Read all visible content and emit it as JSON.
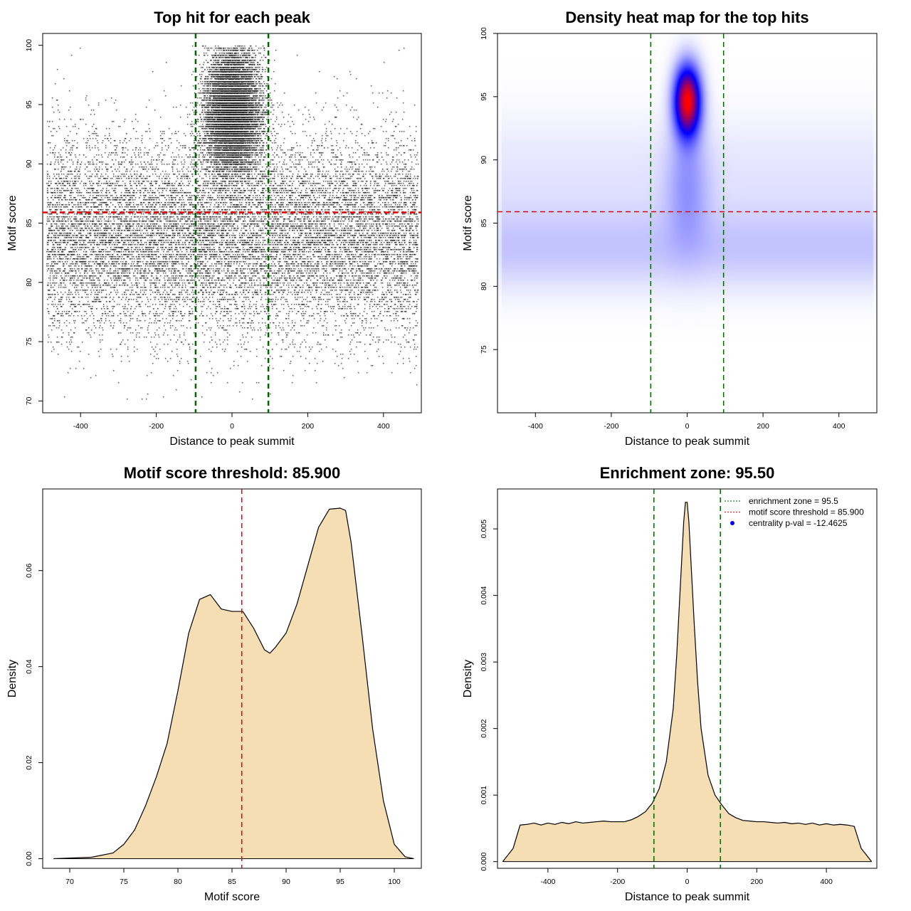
{
  "chart_data": [
    {
      "type": "scatter",
      "title": "Top hit for each peak",
      "xlabel": "Distance to peak summit",
      "ylabel": "Motif score",
      "xlim": [
        -500,
        500
      ],
      "ylim": [
        69,
        101
      ],
      "xticks": [
        -400,
        -200,
        0,
        200,
        400
      ],
      "yticks": [
        70,
        75,
        80,
        85,
        90,
        95,
        100
      ],
      "background_distribution": {
        "x_range": [
          -490,
          490
        ],
        "score_mode": 84,
        "score_range": [
          70,
          100
        ]
      },
      "central_enrichment": {
        "x_center": 0,
        "x_sd": 35,
        "score_mode": 94.5,
        "score_range": [
          86,
          100
        ]
      },
      "vlines": [
        {
          "x": -96,
          "color": "#006400",
          "style": "dashed"
        },
        {
          "x": 96,
          "color": "#006400",
          "style": "dashed"
        }
      ],
      "hlines": [
        {
          "y": 85.9,
          "color": "#e00000",
          "style": "dashed"
        }
      ]
    },
    {
      "type": "heatmap",
      "title": "Density heat map for the top hits",
      "xlabel": "Distance to peak summit",
      "ylabel": "Motif score",
      "xlim": [
        -500,
        500
      ],
      "ylim": [
        70,
        100
      ],
      "xticks": [
        -400,
        -200,
        0,
        200,
        400
      ],
      "yticks": [
        75,
        80,
        85,
        90,
        95,
        100
      ],
      "hotspot": {
        "x": 0,
        "y": 94.7
      },
      "colors": [
        "#ffffff",
        "#0000ff",
        "#ff0000"
      ],
      "vlines": [
        {
          "x": -96,
          "color": "#006400",
          "style": "dashed"
        },
        {
          "x": 96,
          "color": "#006400",
          "style": "dashed"
        }
      ],
      "hlines": [
        {
          "y": 85.9,
          "color": "#e00000",
          "style": "dashed"
        }
      ]
    },
    {
      "type": "area",
      "title": "Motif score threshold: 85.900",
      "xlabel": "Motif score",
      "ylabel": "Density",
      "xlim": [
        67.5,
        102.5
      ],
      "ylim": [
        -0.002,
        0.077
      ],
      "xticks": [
        70,
        75,
        80,
        85,
        90,
        95,
        100
      ],
      "yticks": [
        0.0,
        0.02,
        0.04,
        0.06
      ],
      "ytick_labels": [
        "0.00",
        "0.02",
        "0.04",
        "0.06"
      ],
      "fill": "#f5deb3",
      "x": [
        68.5,
        72,
        74,
        75,
        76,
        77,
        78,
        79,
        80,
        81,
        82,
        83,
        84,
        85,
        86,
        87,
        88,
        88.5,
        89,
        90,
        91,
        92,
        93,
        94,
        95,
        95.5,
        96,
        97,
        98,
        99,
        100,
        101,
        101.8
      ],
      "y": [
        0.0,
        0.0003,
        0.0012,
        0.003,
        0.006,
        0.011,
        0.017,
        0.024,
        0.035,
        0.047,
        0.054,
        0.055,
        0.052,
        0.0515,
        0.0515,
        0.048,
        0.0435,
        0.0428,
        0.044,
        0.047,
        0.053,
        0.061,
        0.069,
        0.0728,
        0.073,
        0.0725,
        0.066,
        0.047,
        0.027,
        0.012,
        0.003,
        0.0004,
        0.0
      ],
      "vlines": [
        {
          "x": 85.9,
          "color": "#e00000",
          "style": "dashed"
        }
      ]
    },
    {
      "type": "area",
      "title": "Enrichment zone: 95.50",
      "xlabel": "Distance to peak summit",
      "ylabel": "Density",
      "xlim": [
        -545,
        545
      ],
      "ylim": [
        -0.0001,
        0.0056
      ],
      "xticks": [
        -400,
        -200,
        0,
        200,
        400
      ],
      "yticks": [
        0.0,
        0.001,
        0.002,
        0.003,
        0.004,
        0.005
      ],
      "ytick_labels": [
        "0.000",
        "0.001",
        "0.002",
        "0.003",
        "0.004",
        "0.005"
      ],
      "fill": "#f5deb3",
      "x": [
        -530,
        -500,
        -480,
        -460,
        -440,
        -420,
        -400,
        -380,
        -360,
        -340,
        -320,
        -300,
        -280,
        -260,
        -240,
        -220,
        -200,
        -180,
        -160,
        -140,
        -120,
        -100,
        -80,
        -60,
        -40,
        -30,
        -20,
        -10,
        -5,
        0,
        5,
        10,
        20,
        30,
        40,
        60,
        80,
        100,
        120,
        140,
        160,
        180,
        200,
        220,
        240,
        260,
        280,
        300,
        320,
        340,
        360,
        380,
        400,
        420,
        440,
        460,
        480,
        500,
        530
      ],
      "y": [
        0.0,
        0.0002,
        0.00055,
        0.00056,
        0.00058,
        0.00055,
        0.00058,
        0.00056,
        0.00059,
        0.00057,
        0.0006,
        0.00058,
        0.00059,
        0.0006,
        0.00061,
        0.0006,
        0.0006,
        0.0006,
        0.00063,
        0.00068,
        0.00075,
        0.00088,
        0.0011,
        0.0015,
        0.0023,
        0.0031,
        0.0041,
        0.0051,
        0.0054,
        0.0054,
        0.0051,
        0.0046,
        0.0036,
        0.0027,
        0.002,
        0.0013,
        0.001,
        0.00085,
        0.00072,
        0.00066,
        0.00062,
        0.00061,
        0.0006,
        0.0006,
        0.00059,
        0.00058,
        0.00059,
        0.00057,
        0.00058,
        0.00056,
        0.00058,
        0.00055,
        0.00057,
        0.00055,
        0.00056,
        0.00055,
        0.00053,
        0.0002,
        0.0
      ],
      "vlines": [
        {
          "x": -95.5,
          "color": "#006400",
          "style": "dashed"
        },
        {
          "x": 95.5,
          "color": "#006400",
          "style": "dashed"
        }
      ],
      "legend": {
        "placement": "top-right",
        "entries": [
          {
            "label": "enrichment zone = 95.5",
            "color": "#006400",
            "symbol": "dotted-line"
          },
          {
            "label": "motif score threshold = 85.900",
            "color": "#e00000",
            "symbol": "dotted-line"
          },
          {
            "label": "centrality p-val = -12.4625",
            "color": "#0000ff",
            "symbol": "point"
          }
        ]
      }
    }
  ]
}
